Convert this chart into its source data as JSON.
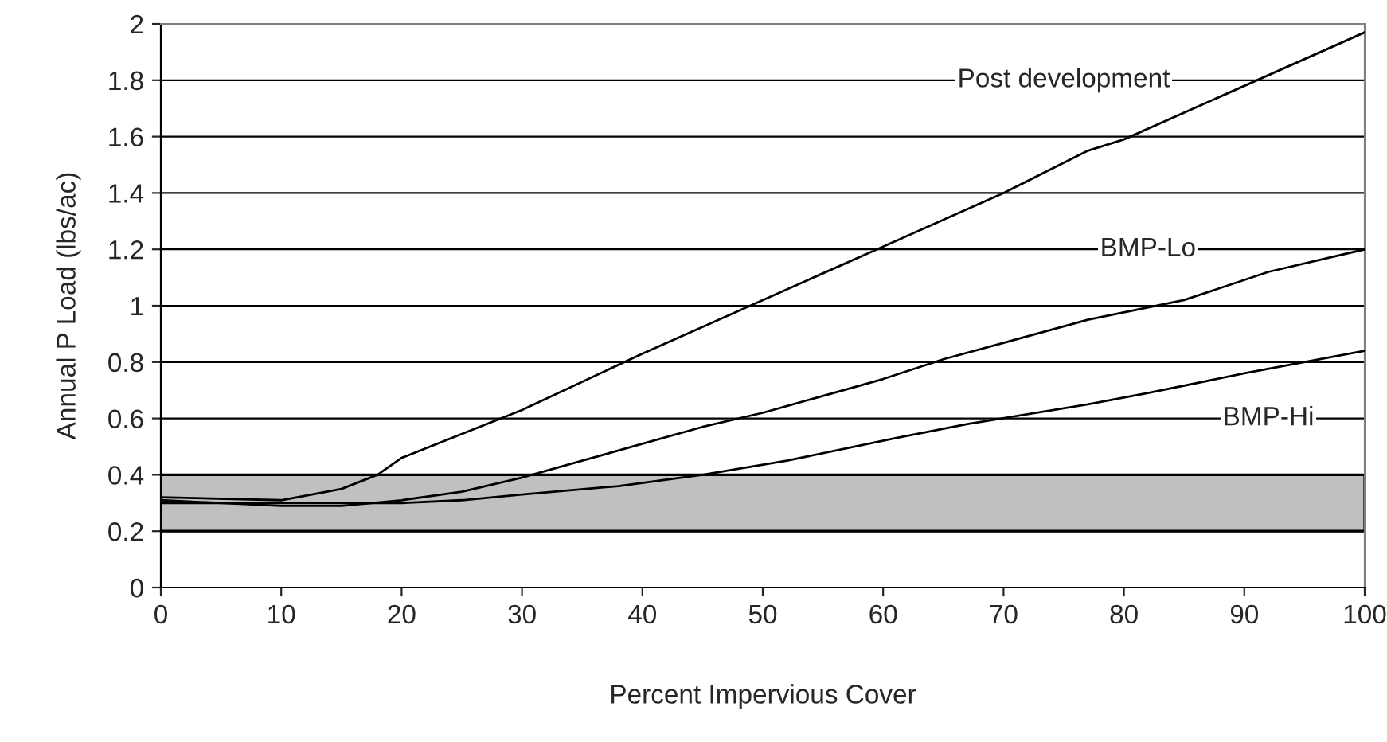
{
  "chart_data": {
    "type": "line",
    "xlabel": "Percent Impervious Cover",
    "ylabel": "Annual P Load (lbs/ac)",
    "xlim": [
      0,
      100
    ],
    "xticks": [
      0,
      10,
      20,
      30,
      40,
      50,
      60,
      70,
      80,
      90,
      100
    ],
    "ylim": [
      0,
      2
    ],
    "yticks": [
      0,
      0.2,
      0.4,
      0.6,
      0.8,
      1,
      1.2,
      1.4,
      1.6,
      1.8,
      2
    ],
    "grid": "y",
    "legend": false,
    "marker": "none",
    "line_style": "solid",
    "bands": [
      {
        "axis": "y",
        "from": 0.2,
        "to": 0.4,
        "color": "#c0c0c0"
      }
    ],
    "series": [
      {
        "name": "Post development",
        "color": "#000000",
        "x": [
          0,
          10,
          15,
          18,
          20,
          30,
          40,
          50,
          60,
          70,
          77,
          80,
          90,
          100
        ],
        "values": [
          0.32,
          0.31,
          0.35,
          0.4,
          0.46,
          0.63,
          0.83,
          1.02,
          1.21,
          1.4,
          1.55,
          1.59,
          1.78,
          1.97
        ]
      },
      {
        "name": "BMP-Lo",
        "color": "#000000",
        "x": [
          0,
          10,
          15,
          20,
          25,
          30,
          35,
          40,
          45,
          50,
          60,
          65,
          77,
          85,
          92,
          100
        ],
        "values": [
          0.31,
          0.29,
          0.29,
          0.31,
          0.34,
          0.39,
          0.45,
          0.51,
          0.57,
          0.62,
          0.74,
          0.81,
          0.95,
          1.02,
          1.12,
          1.2
        ]
      },
      {
        "name": "BMP-Hi",
        "color": "#000000",
        "x": [
          0,
          20,
          25,
          30,
          38,
          45,
          52,
          61,
          67,
          77,
          82,
          90,
          100
        ],
        "values": [
          0.3,
          0.3,
          0.31,
          0.33,
          0.36,
          0.4,
          0.45,
          0.53,
          0.58,
          0.65,
          0.69,
          0.76,
          0.84
        ]
      }
    ]
  }
}
